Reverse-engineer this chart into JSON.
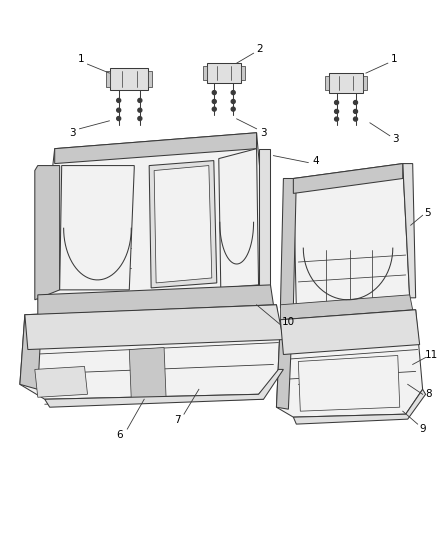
{
  "bg_color": "#ffffff",
  "line_color": "#3a3a3a",
  "figsize": [
    4.38,
    5.33
  ],
  "dpi": 100,
  "label_fs": 7.5,
  "lw": 0.75
}
